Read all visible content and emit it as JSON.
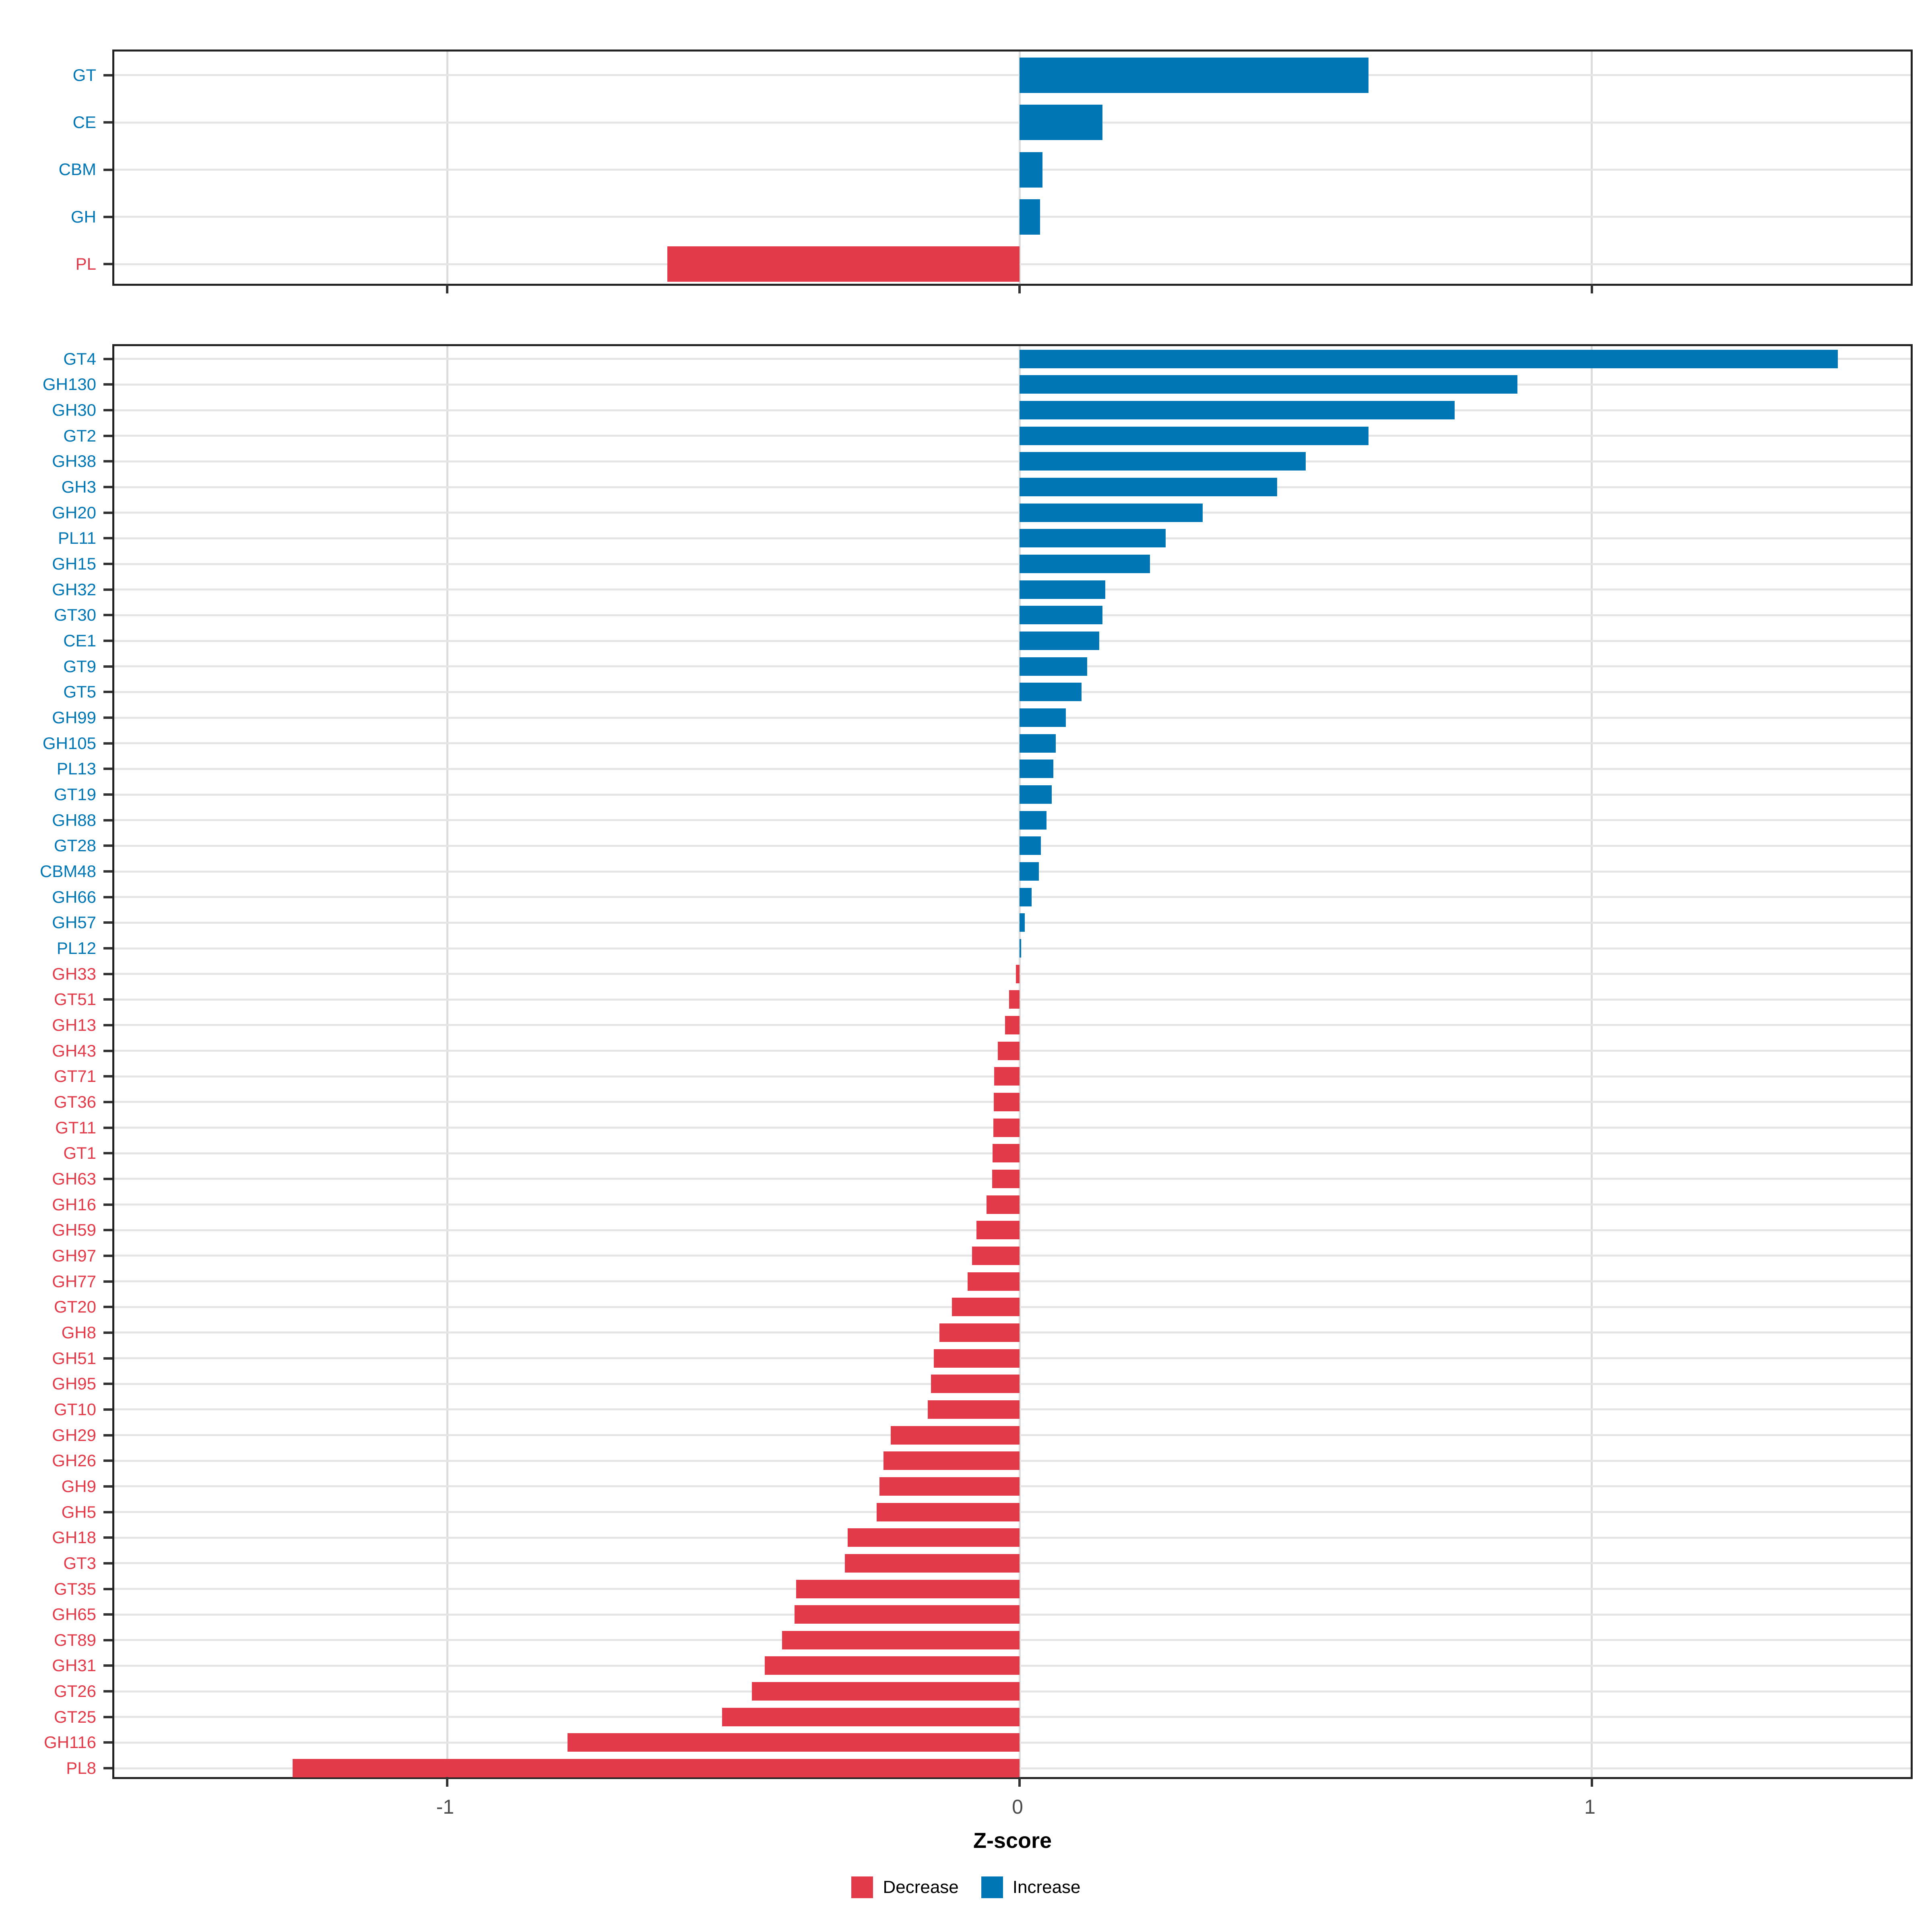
{
  "colors": {
    "increase": "#0077B4",
    "decrease": "#E23A49",
    "grid": "#E5E5E5",
    "vgrid": "#DCDCDC",
    "axis_text": "#4D4D4D",
    "panel_border": "#222222"
  },
  "axis": {
    "title": "Z-score",
    "tick_labels": [
      "-1",
      "0",
      "1"
    ],
    "tick_values": [
      -1,
      0,
      1
    ]
  },
  "legend": {
    "items": [
      {
        "label": "Decrease",
        "key": "decrease"
      },
      {
        "label": "Increase",
        "key": "increase"
      }
    ]
  },
  "chart_data": {
    "type": "bar",
    "orientation": "horizontal",
    "title": "",
    "xlabel": "Z-score",
    "ylabel": "",
    "xlim": [
      -1.5816,
      1.564
    ],
    "x_ticks": [
      -1,
      0,
      1
    ],
    "grid": "major-x and row gridlines",
    "legend_position": "bottom",
    "series_coloring": "sign: negative = Decrease (red), positive = Increase (blue)",
    "panels": [
      {
        "name": "cazyme-classes",
        "categories": [
          "GT",
          "CE",
          "CBM",
          "GH",
          "PL"
        ],
        "values": [
          0.61,
          0.145,
          0.04,
          0.036,
          -0.615
        ]
      },
      {
        "name": "cazyme-families",
        "categories": [
          "GT4",
          "GH130",
          "GH30",
          "GT2",
          "GH38",
          "GH3",
          "GH20",
          "PL11",
          "GH15",
          "GH32",
          "GT30",
          "CE1",
          "GT9",
          "GT5",
          "GH99",
          "GH105",
          "PL13",
          "GT19",
          "GH88",
          "GT28",
          "CBM48",
          "GH66",
          "GH57",
          "PL12",
          "GH33",
          "GT51",
          "GH13",
          "GH43",
          "GT71",
          "GT36",
          "GT11",
          "GT1",
          "GH63",
          "GH16",
          "GH59",
          "GH97",
          "GH77",
          "GT20",
          "GH8",
          "GH51",
          "GH95",
          "GT10",
          "GH29",
          "GH26",
          "GH9",
          "GH5",
          "GH18",
          "GT3",
          "GT35",
          "GH65",
          "GT89",
          "GH31",
          "GT26",
          "GT25",
          "GH116",
          "PL8"
        ],
        "values": [
          1.43,
          0.87,
          0.76,
          0.61,
          0.5,
          0.45,
          0.32,
          0.255,
          0.228,
          0.15,
          0.145,
          0.139,
          0.118,
          0.108,
          0.081,
          0.063,
          0.059,
          0.056,
          0.047,
          0.037,
          0.034,
          0.021,
          0.009,
          0.003,
          -0.006,
          -0.018,
          -0.025,
          -0.038,
          -0.044,
          -0.045,
          -0.046,
          -0.047,
          -0.048,
          -0.058,
          -0.075,
          -0.083,
          -0.091,
          -0.118,
          -0.14,
          -0.15,
          -0.155,
          -0.16,
          -0.225,
          -0.238,
          -0.245,
          -0.25,
          -0.3,
          -0.305,
          -0.39,
          -0.393,
          -0.415,
          -0.445,
          -0.468,
          -0.52,
          -0.79,
          -1.27
        ]
      }
    ]
  }
}
